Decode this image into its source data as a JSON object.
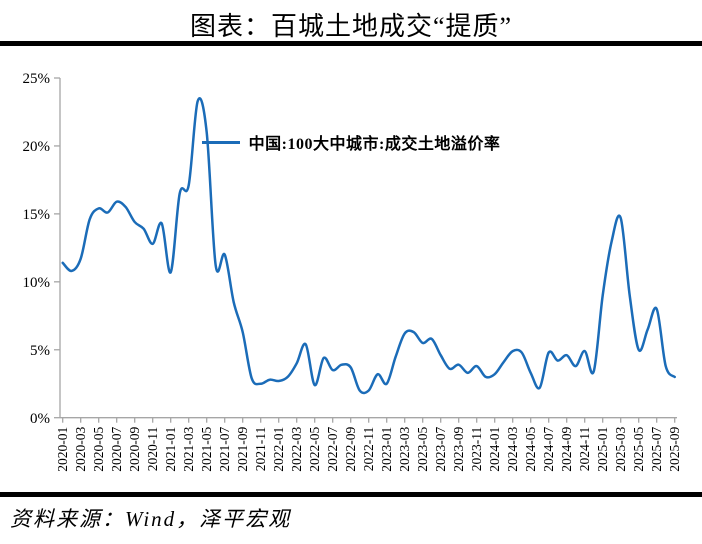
{
  "page": {
    "title": "图表：百城土地成交“提质”",
    "source": "资料来源：Wind，泽平宏观"
  },
  "chart_data": {
    "type": "line",
    "title": "图表：百城土地成交“提质”",
    "legend_position": "top-center",
    "grid": false,
    "ylim": [
      0,
      25
    ],
    "y_tick_labels": [
      "0%",
      "5%",
      "10%",
      "15%",
      "20%",
      "25%"
    ],
    "x_frequency": "monthly",
    "x_start": "2020-01",
    "x_end": "2025-09",
    "x_tick_labels": [
      "2020-01",
      "2020-03",
      "2020-05",
      "2020-07",
      "2020-09",
      "2020-11",
      "2021-01",
      "2021-03",
      "2021-05",
      "2021-07",
      "2021-09",
      "2021-11",
      "2022-01",
      "2022-03",
      "2022-05",
      "2022-07",
      "2022-09",
      "2022-11",
      "2023-01",
      "2023-03",
      "2023-05",
      "2023-07",
      "2023-09",
      "2023-11",
      "2024-01",
      "2024-03",
      "2024-05",
      "2024-07",
      "2024-09",
      "2024-11",
      "2025-01",
      "2025-03",
      "2025-05",
      "2025-07",
      "2025-09"
    ],
    "series": [
      {
        "name": "中国:100大中城市:成交土地溢价率",
        "unit": "%",
        "color": "#1b6cb8",
        "values": [
          11.4,
          10.8,
          11.7,
          14.6,
          15.4,
          15.1,
          15.9,
          15.5,
          14.4,
          13.9,
          12.8,
          14.3,
          10.7,
          16.5,
          17.1,
          23.3,
          21.0,
          11.2,
          12.0,
          8.5,
          6.3,
          2.9,
          2.5,
          2.8,
          2.7,
          3.0,
          4.0,
          5.4,
          2.4,
          4.4,
          3.5,
          3.9,
          3.7,
          2.0,
          2.0,
          3.2,
          2.5,
          4.5,
          6.2,
          6.3,
          5.5,
          5.8,
          4.6,
          3.6,
          3.9,
          3.3,
          3.8,
          3.0,
          3.2,
          4.1,
          4.9,
          4.8,
          3.3,
          2.2,
          4.8,
          4.2,
          4.6,
          3.8,
          4.9,
          3.4,
          9.0,
          13.0,
          14.7,
          9.0,
          5.0,
          6.5,
          8.0,
          3.8,
          3.0
        ]
      }
    ],
    "axis_color": "#a6a6a6"
  }
}
